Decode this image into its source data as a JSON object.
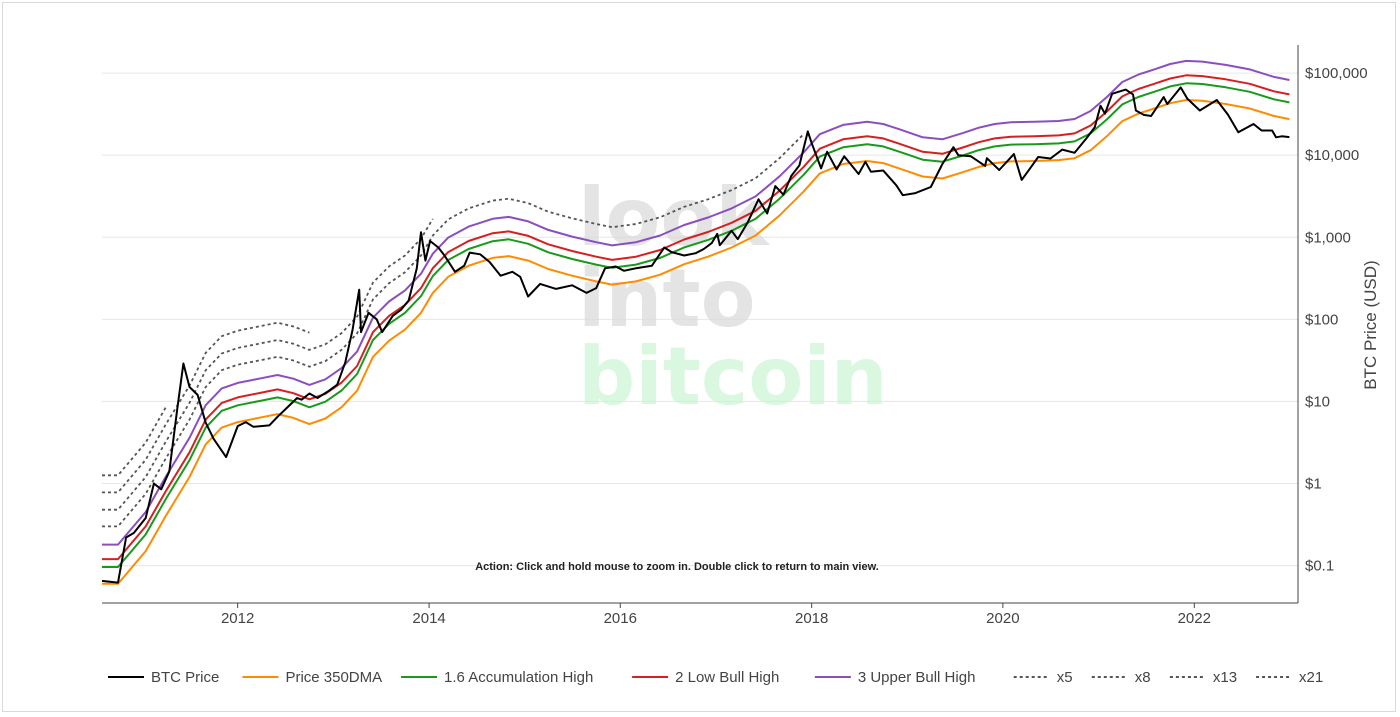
{
  "chart_data": {
    "type": "line",
    "title": "",
    "xlabel": "",
    "ylabel": "BTC Price (USD)",
    "y_scale": "log",
    "ylim": [
      0.035,
      220000
    ],
    "xlim": [
      "2010-08-01",
      "2023-02-01"
    ],
    "grid": true,
    "legend_position": "bottom",
    "watermark": [
      "look",
      "into",
      "bitcoin"
    ],
    "annotation": "Action: Click and hold mouse to zoom in.  Double click to return to main view.",
    "x_ticks": [
      {
        "date": "2012-01-01",
        "label": "2012"
      },
      {
        "date": "2014-01-01",
        "label": "2014"
      },
      {
        "date": "2016-01-01",
        "label": "2016"
      },
      {
        "date": "2018-01-01",
        "label": "2018"
      },
      {
        "date": "2020-01-01",
        "label": "2020"
      },
      {
        "date": "2022-01-01",
        "label": "2022"
      }
    ],
    "y_ticks": [
      {
        "value": 0.1,
        "label": "$0.1"
      },
      {
        "value": 1,
        "label": "$1"
      },
      {
        "value": 10,
        "label": "$10"
      },
      {
        "value": 100,
        "label": "$100"
      },
      {
        "value": 1000,
        "label": "$1,000"
      },
      {
        "value": 10000,
        "label": "$10,000"
      },
      {
        "value": 100000,
        "label": "$100,000"
      }
    ],
    "series": [
      {
        "name": "BTC Price",
        "color": "#000000",
        "dash": "solid",
        "points": [
          [
            "2010-08-01",
            0.065
          ],
          [
            "2010-10-01",
            0.062
          ],
          [
            "2010-11-01",
            0.22
          ],
          [
            "2010-12-01",
            0.25
          ],
          [
            "2011-01-15",
            0.38
          ],
          [
            "2011-02-15",
            1.0
          ],
          [
            "2011-03-15",
            0.85
          ],
          [
            "2011-04-15",
            1.4
          ],
          [
            "2011-05-15",
            8.0
          ],
          [
            "2011-06-08",
            29.0
          ],
          [
            "2011-07-01",
            15.0
          ],
          [
            "2011-08-01",
            12.0
          ],
          [
            "2011-09-01",
            5.5
          ],
          [
            "2011-10-01",
            3.5
          ],
          [
            "2011-11-18",
            2.1
          ],
          [
            "2012-01-01",
            5.0
          ],
          [
            "2012-02-01",
            5.6
          ],
          [
            "2012-03-01",
            4.9
          ],
          [
            "2012-05-01",
            5.1
          ],
          [
            "2012-06-01",
            6.5
          ],
          [
            "2012-07-01",
            8.0
          ],
          [
            "2012-08-15",
            11.0
          ],
          [
            "2012-09-01",
            10.5
          ],
          [
            "2012-10-01",
            12.5
          ],
          [
            "2012-11-01",
            11.0
          ],
          [
            "2012-12-15",
            13.5
          ],
          [
            "2013-01-15",
            16.0
          ],
          [
            "2013-02-15",
            30.0
          ],
          [
            "2013-03-15",
            75.0
          ],
          [
            "2013-04-09",
            230.0
          ],
          [
            "2013-04-16",
            70.0
          ],
          [
            "2013-05-15",
            120.0
          ],
          [
            "2013-06-15",
            100.0
          ],
          [
            "2013-07-06",
            70.0
          ],
          [
            "2013-08-15",
            110.0
          ],
          [
            "2013-09-15",
            130.0
          ],
          [
            "2013-10-15",
            170.0
          ],
          [
            "2013-11-15",
            420.0
          ],
          [
            "2013-12-01",
            1150.0
          ],
          [
            "2013-12-18",
            520.0
          ],
          [
            "2014-01-05",
            900.0
          ],
          [
            "2014-02-05",
            750.0
          ],
          [
            "2014-03-01",
            600.0
          ],
          [
            "2014-04-10",
            380.0
          ],
          [
            "2014-05-15",
            450.0
          ],
          [
            "2014-06-05",
            650.0
          ],
          [
            "2014-07-15",
            620.0
          ],
          [
            "2014-08-20",
            500.0
          ],
          [
            "2014-10-01",
            340.0
          ],
          [
            "2014-11-15",
            380.0
          ],
          [
            "2014-12-15",
            330.0
          ],
          [
            "2015-01-14",
            190.0
          ],
          [
            "2015-03-01",
            270.0
          ],
          [
            "2015-05-01",
            235.0
          ],
          [
            "2015-07-01",
            260.0
          ],
          [
            "2015-08-25",
            210.0
          ],
          [
            "2015-10-01",
            240.0
          ],
          [
            "2015-11-04",
            420.0
          ],
          [
            "2015-12-15",
            440.0
          ],
          [
            "2016-01-15",
            390.0
          ],
          [
            "2016-03-01",
            420.0
          ],
          [
            "2016-05-01",
            450.0
          ],
          [
            "2016-06-17",
            750.0
          ],
          [
            "2016-07-15",
            660.0
          ],
          [
            "2016-09-01",
            600.0
          ],
          [
            "2016-10-15",
            640.0
          ],
          [
            "2016-11-15",
            720.0
          ],
          [
            "2016-12-15",
            850.0
          ],
          [
            "2017-01-05",
            1100.0
          ],
          [
            "2017-01-15",
            800.0
          ],
          [
            "2017-03-01",
            1200.0
          ],
          [
            "2017-03-25",
            950.0
          ],
          [
            "2017-05-01",
            1500.0
          ],
          [
            "2017-06-12",
            2900.0
          ],
          [
            "2017-07-15",
            1950.0
          ],
          [
            "2017-08-15",
            4200.0
          ],
          [
            "2017-09-15",
            3300.0
          ],
          [
            "2017-10-15",
            5600.0
          ],
          [
            "2017-11-15",
            7500.0
          ],
          [
            "2017-12-17",
            19500.0
          ],
          [
            "2018-01-01",
            14000.0
          ],
          [
            "2018-02-06",
            6900.0
          ],
          [
            "2018-03-01",
            11000.0
          ],
          [
            "2018-04-06",
            6700.0
          ],
          [
            "2018-05-05",
            9700.0
          ],
          [
            "2018-06-29",
            5900.0
          ],
          [
            "2018-07-25",
            8300.0
          ],
          [
            "2018-08-15",
            6300.0
          ],
          [
            "2018-10-01",
            6500.0
          ],
          [
            "2018-11-20",
            4300.0
          ],
          [
            "2018-12-15",
            3250.0
          ],
          [
            "2019-02-01",
            3450.0
          ],
          [
            "2019-04-01",
            4100.0
          ],
          [
            "2019-05-15",
            7800.0
          ],
          [
            "2019-06-26",
            12500.0
          ],
          [
            "2019-07-15",
            10000.0
          ],
          [
            "2019-09-01",
            9700.0
          ],
          [
            "2019-10-25",
            7400.0
          ],
          [
            "2019-11-01",
            9200.0
          ],
          [
            "2019-12-18",
            6600.0
          ],
          [
            "2020-02-12",
            10300.0
          ],
          [
            "2020-03-13",
            5000.0
          ],
          [
            "2020-04-15",
            7000.0
          ],
          [
            "2020-05-15",
            9500.0
          ],
          [
            "2020-07-01",
            9100.0
          ],
          [
            "2020-08-15",
            11700.0
          ],
          [
            "2020-10-01",
            10700.0
          ],
          [
            "2020-11-15",
            16000.0
          ],
          [
            "2020-12-17",
            22000.0
          ],
          [
            "2021-01-08",
            40000.0
          ],
          [
            "2021-01-25",
            32000.0
          ],
          [
            "2021-02-21",
            56000.0
          ],
          [
            "2021-04-14",
            63000.0
          ],
          [
            "2021-05-12",
            55000.0
          ],
          [
            "2021-05-23",
            35000.0
          ],
          [
            "2021-06-22",
            31000.0
          ],
          [
            "2021-07-20",
            30000.0
          ],
          [
            "2021-09-06",
            51000.0
          ],
          [
            "2021-09-20",
            42000.0
          ],
          [
            "2021-11-10",
            67000.0
          ],
          [
            "2021-12-05",
            49000.0
          ],
          [
            "2022-01-22",
            35000.0
          ],
          [
            "2022-03-28",
            47000.0
          ],
          [
            "2022-05-10",
            31000.0
          ],
          [
            "2022-06-18",
            19000.0
          ],
          [
            "2022-08-15",
            24000.0
          ],
          [
            "2022-09-15",
            20000.0
          ],
          [
            "2022-10-25",
            20000.0
          ],
          [
            "2022-11-09",
            16500.0
          ],
          [
            "2022-12-01",
            17000.0
          ],
          [
            "2022-12-30",
            16600.0
          ]
        ]
      },
      {
        "name": "Price 350DMA",
        "color": "#ff8c00",
        "dash": "solid",
        "points": [
          [
            "2010-08-01",
            0.06
          ],
          [
            "2010-10-01",
            0.06
          ],
          [
            "2011-01-15",
            0.15
          ],
          [
            "2011-04-01",
            0.4
          ],
          [
            "2011-07-01",
            1.2
          ],
          [
            "2011-09-01",
            3.0
          ],
          [
            "2011-11-01",
            4.8
          ],
          [
            "2012-01-01",
            5.6
          ],
          [
            "2012-04-01",
            6.4
          ],
          [
            "2012-06-01",
            7.0
          ],
          [
            "2012-08-01",
            6.3
          ],
          [
            "2012-10-01",
            5.3
          ],
          [
            "2012-12-01",
            6.2
          ],
          [
            "2013-02-01",
            8.5
          ],
          [
            "2013-04-01",
            13.5
          ],
          [
            "2013-06-01",
            35.0
          ],
          [
            "2013-08-01",
            55.0
          ],
          [
            "2013-10-01",
            75.0
          ],
          [
            "2013-12-01",
            120.0
          ],
          [
            "2014-01-15",
            210.0
          ],
          [
            "2014-03-15",
            330.0
          ],
          [
            "2014-06-01",
            450.0
          ],
          [
            "2014-09-01",
            560.0
          ],
          [
            "2014-11-01",
            590.0
          ],
          [
            "2015-01-15",
            520.0
          ],
          [
            "2015-04-01",
            410.0
          ],
          [
            "2015-07-01",
            340.0
          ],
          [
            "2015-10-01",
            290.0
          ],
          [
            "2015-12-01",
            265.0
          ],
          [
            "2016-03-01",
            290.0
          ],
          [
            "2016-06-01",
            350.0
          ],
          [
            "2016-09-01",
            470.0
          ],
          [
            "2016-12-01",
            580.0
          ],
          [
            "2017-03-01",
            750.0
          ],
          [
            "2017-06-01",
            1050.0
          ],
          [
            "2017-09-01",
            1850.0
          ],
          [
            "2017-12-01",
            3600.0
          ],
          [
            "2018-02-01",
            6000.0
          ],
          [
            "2018-05-01",
            7800.0
          ],
          [
            "2018-08-01",
            8500.0
          ],
          [
            "2018-10-01",
            8000.0
          ],
          [
            "2018-12-01",
            6900.0
          ],
          [
            "2019-03-01",
            5500.0
          ],
          [
            "2019-05-15",
            5200.0
          ],
          [
            "2019-08-01",
            6200.0
          ],
          [
            "2019-10-01",
            7200.0
          ],
          [
            "2019-12-01",
            8000.0
          ],
          [
            "2020-02-01",
            8400.0
          ],
          [
            "2020-05-01",
            8500.0
          ],
          [
            "2020-08-01",
            8700.0
          ],
          [
            "2020-10-01",
            9200.0
          ],
          [
            "2020-12-01",
            11500.0
          ],
          [
            "2021-02-01",
            17000.0
          ],
          [
            "2021-04-01",
            26000.0
          ],
          [
            "2021-06-01",
            32000.0
          ],
          [
            "2021-08-01",
            37000.0
          ],
          [
            "2021-10-01",
            43000.0
          ],
          [
            "2021-12-01",
            47000.0
          ],
          [
            "2022-02-01",
            46000.0
          ],
          [
            "2022-05-01",
            42000.0
          ],
          [
            "2022-08-01",
            37000.0
          ],
          [
            "2022-11-01",
            30000.0
          ],
          [
            "2022-12-30",
            27500.0
          ]
        ]
      },
      {
        "name": "1.6 Accumulation High",
        "color": "#1a9a1a",
        "dash": "solid",
        "multiplier": 1.6
      },
      {
        "name": "2 Low Bull High",
        "color": "#d62020",
        "dash": "solid",
        "multiplier": 2
      },
      {
        "name": "3 Upper Bull High",
        "color": "#8a4fbf",
        "dash": "solid",
        "multiplier": 3
      },
      {
        "name": "x5",
        "color": "#555555",
        "dash": "dotted",
        "multiplier": 5,
        "end": "2018-01-20"
      },
      {
        "name": "x8",
        "color": "#555555",
        "dash": "dotted",
        "multiplier": 8,
        "end": "2014-01-15"
      },
      {
        "name": "x13",
        "color": "#555555",
        "dash": "dotted",
        "multiplier": 13,
        "end": "2012-10-01"
      },
      {
        "name": "x21",
        "color": "#555555",
        "dash": "dotted",
        "multiplier": 21,
        "end": "2011-06-15"
      }
    ]
  }
}
